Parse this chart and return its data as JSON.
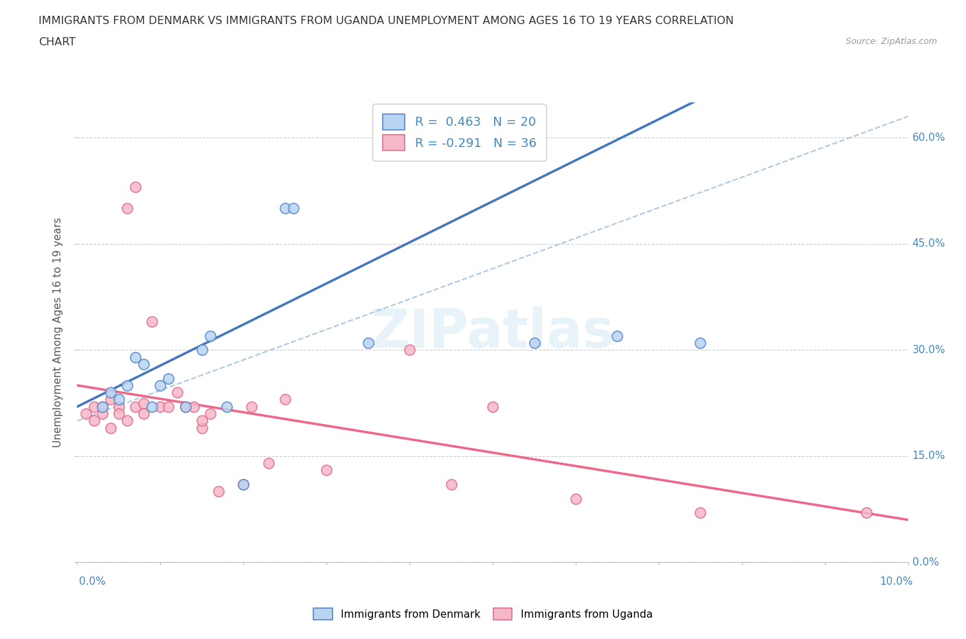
{
  "title_line1": "IMMIGRANTS FROM DENMARK VS IMMIGRANTS FROM UGANDA UNEMPLOYMENT AMONG AGES 16 TO 19 YEARS CORRELATION",
  "title_line2": "CHART",
  "source": "Source: ZipAtlas.com",
  "ylabel": "Unemployment Among Ages 16 to 19 years",
  "legend_denmark": "Immigrants from Denmark",
  "legend_uganda": "Immigrants from Uganda",
  "R_denmark": 0.463,
  "N_denmark": 20,
  "R_uganda": -0.291,
  "N_uganda": 36,
  "color_denmark_face": "#b8d4f0",
  "color_denmark_edge": "#5588cc",
  "color_uganda_face": "#f5b8c8",
  "color_uganda_edge": "#e07090",
  "color_trend_dk": "#4477bb",
  "color_trend_ug": "#ee6688",
  "color_diagonal": "#99bbdd",
  "color_axis_labels": "#4488bb",
  "watermark": "ZIPatlas",
  "xlim": [
    0.0,
    10.0
  ],
  "ylim": [
    0.0,
    65.0
  ],
  "yticks": [
    0.0,
    15.0,
    30.0,
    45.0,
    60.0
  ],
  "ytick_labels": [
    "0.0%",
    "15.0%",
    "30.0%",
    "45.0%",
    "60.0%"
  ],
  "denmark_x": [
    0.3,
    0.4,
    0.5,
    0.6,
    0.7,
    0.8,
    0.9,
    1.0,
    1.1,
    1.3,
    1.5,
    1.6,
    1.8,
    2.0,
    2.5,
    2.6,
    3.5,
    5.5,
    6.5,
    7.5
  ],
  "denmark_y": [
    22.0,
    24.0,
    23.0,
    25.0,
    29.0,
    28.0,
    22.0,
    25.0,
    26.0,
    22.0,
    30.0,
    32.0,
    22.0,
    11.0,
    50.0,
    50.0,
    31.0,
    31.0,
    32.0,
    31.0
  ],
  "uganda_x": [
    0.1,
    0.2,
    0.2,
    0.3,
    0.3,
    0.4,
    0.4,
    0.5,
    0.5,
    0.6,
    0.6,
    0.7,
    0.7,
    0.8,
    0.8,
    0.9,
    1.0,
    1.1,
    1.2,
    1.3,
    1.4,
    1.5,
    1.5,
    1.6,
    1.7,
    2.0,
    2.1,
    2.3,
    2.5,
    3.0,
    4.0,
    4.5,
    5.0,
    6.0,
    7.5,
    9.5
  ],
  "uganda_y": [
    21.0,
    22.0,
    20.0,
    22.0,
    21.0,
    23.0,
    19.0,
    22.0,
    21.0,
    20.0,
    50.0,
    53.0,
    22.0,
    22.5,
    21.0,
    34.0,
    22.0,
    22.0,
    24.0,
    22.0,
    22.0,
    19.0,
    20.0,
    21.0,
    10.0,
    11.0,
    22.0,
    14.0,
    23.0,
    13.0,
    30.0,
    11.0,
    22.0,
    9.0,
    7.0,
    7.0
  ]
}
